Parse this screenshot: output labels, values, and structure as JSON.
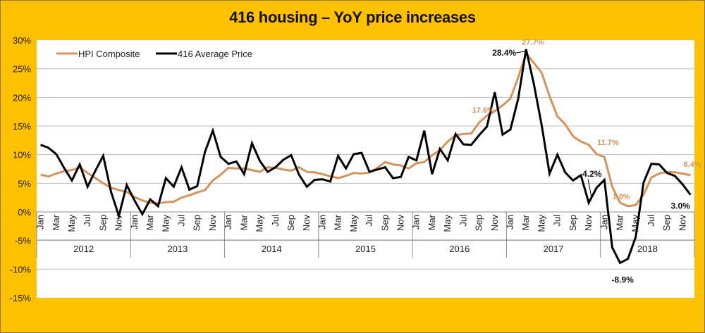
{
  "chart_data": {
    "type": "line",
    "title": "416 housing – YoY price increases",
    "xlabel": "",
    "ylabel": "",
    "ylim": [
      -15,
      30
    ],
    "yticks": [
      30,
      25,
      20,
      15,
      10,
      5,
      0,
      -5,
      -10,
      -15
    ],
    "ytick_labels": [
      "30%",
      "25%",
      "20%",
      "15%",
      "10%",
      "5%",
      "0%",
      "-5%",
      "-10%",
      "-15%"
    ],
    "grid": true,
    "legend": "top-left",
    "years": [
      "2012",
      "2013",
      "2014",
      "2015",
      "2016",
      "2017",
      "2018"
    ],
    "month_tick_labels": [
      "Jan",
      "Mar",
      "May",
      "Jul",
      "Sep",
      "Nov"
    ],
    "x": "monthly, Jan 2012 – Dec 2018",
    "series": [
      {
        "name": "HPI Composite",
        "color": "#D4935A",
        "values": [
          6.5,
          6.2,
          6.7,
          7.1,
          7.3,
          7.8,
          6.8,
          5.9,
          5.0,
          4.2,
          3.8,
          3.5,
          2.6,
          2.0,
          1.6,
          1.5,
          1.7,
          1.8,
          2.5,
          2.9,
          3.4,
          3.8,
          5.5,
          6.5,
          7.7,
          7.6,
          7.6,
          7.3,
          7.0,
          7.8,
          7.7,
          7.4,
          7.2,
          7.8,
          7.0,
          6.9,
          6.6,
          6.2,
          5.9,
          6.3,
          6.8,
          6.7,
          6.9,
          7.7,
          8.7,
          8.3,
          8.1,
          7.6,
          8.5,
          8.7,
          9.9,
          10.8,
          12.3,
          13.4,
          13.6,
          13.7,
          15.6,
          16.8,
          17.6,
          18.6,
          19.8,
          23.5,
          27.7,
          26.0,
          24.3,
          20.2,
          16.7,
          15.3,
          13.2,
          12.3,
          11.7,
          10.1,
          9.6,
          4.4,
          1.6,
          1.0,
          1.2,
          3.0,
          6.0,
          6.7,
          7.0,
          6.9,
          6.7,
          6.4
        ]
      },
      {
        "name": "416 Average Price",
        "color": "#000000",
        "values": [
          11.7,
          11.2,
          10.1,
          7.7,
          5.5,
          8.3,
          4.4,
          7.2,
          9.8,
          3.5,
          -0.7,
          4.7,
          2.0,
          -0.4,
          2.2,
          1.0,
          5.9,
          4.4,
          7.8,
          3.9,
          4.5,
          10.5,
          14.2,
          9.6,
          8.4,
          8.8,
          6.6,
          12.0,
          8.9,
          7.0,
          7.8,
          9.1,
          9.9,
          6.5,
          4.4,
          5.6,
          5.7,
          5.3,
          9.8,
          7.6,
          10.1,
          10.3,
          7.0,
          7.4,
          7.8,
          5.9,
          6.1,
          9.6,
          9.0,
          14.2,
          6.6,
          11.0,
          9.0,
          13.6,
          11.8,
          11.7,
          13.4,
          14.9,
          20.9,
          13.5,
          14.4,
          19.8,
          28.4,
          22.3,
          15.1,
          6.7,
          10.0,
          6.9,
          5.5,
          6.4,
          1.6,
          4.2,
          5.6,
          -6.2,
          -8.9,
          -8.2,
          -4.4,
          5.1,
          8.4,
          8.3,
          6.8,
          6.3,
          4.8,
          3.0
        ]
      }
    ],
    "annotations": [
      {
        "series": "416 Average Price",
        "text": "28.4%",
        "month": "Mar 2017"
      },
      {
        "series": "HPI Composite",
        "text": "27.7%",
        "month": "Mar 2017"
      },
      {
        "series": "HPI Composite",
        "text": "17.6%",
        "month": "Nov 2016"
      },
      {
        "series": "HPI Composite",
        "text": "11.7%",
        "month": "Nov 2017"
      },
      {
        "series": "416 Average Price",
        "text": "4.2%",
        "month": "Dec 2017"
      },
      {
        "series": "HPI Composite",
        "text": "1.0%",
        "month": "Apr 2018"
      },
      {
        "series": "416 Average Price",
        "text": "-8.9%",
        "month": "Mar 2018"
      },
      {
        "series": "HPI Composite",
        "text": "6.4%",
        "month": "Dec 2018"
      },
      {
        "series": "416 Average Price",
        "text": "3.0%",
        "month": "Dec 2018"
      }
    ]
  }
}
